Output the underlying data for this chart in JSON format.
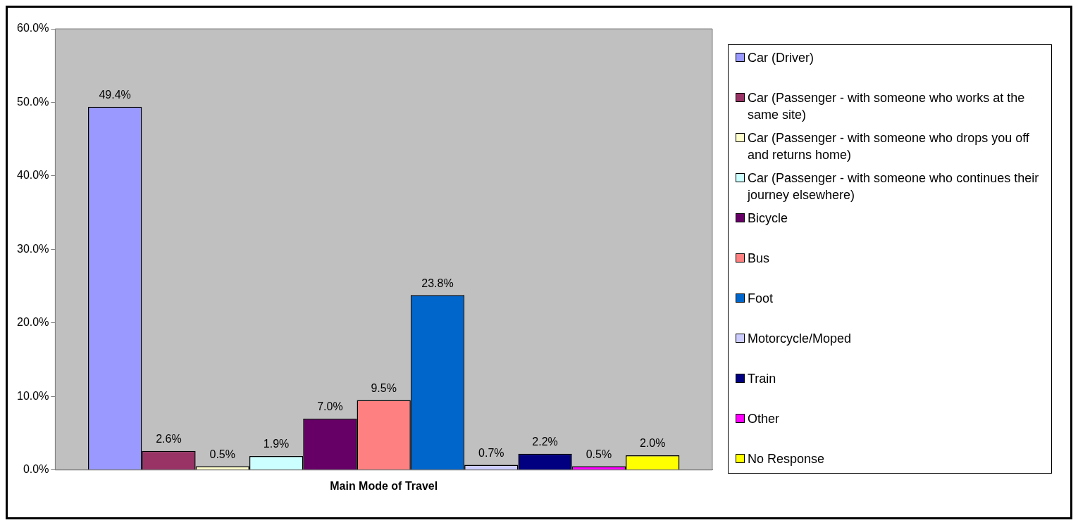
{
  "chart_data": {
    "type": "bar",
    "categories": [
      "Main Mode of Travel"
    ],
    "ylim": [
      0,
      60
    ],
    "yticks": [
      {
        "value": 0,
        "label": "0.0%"
      },
      {
        "value": 10,
        "label": "10.0%"
      },
      {
        "value": 20,
        "label": "20.0%"
      },
      {
        "value": 30,
        "label": "30.0%"
      },
      {
        "value": 40,
        "label": "40.0%"
      },
      {
        "value": 50,
        "label": "50.0%"
      },
      {
        "value": 60,
        "label": "60.0%"
      }
    ],
    "legend": "right",
    "series": [
      {
        "name": "Car (Driver)",
        "color": "#9999ff",
        "values": [
          49.4
        ],
        "value_labels": [
          "49.4%"
        ]
      },
      {
        "name": "Car (Passenger - with someone who works at the same site)",
        "color": "#993366",
        "values": [
          2.6
        ],
        "value_labels": [
          "2.6%"
        ]
      },
      {
        "name": "Car (Passenger - with someone who drops you off and returns home)",
        "color": "#ffffcc",
        "values": [
          0.5
        ],
        "value_labels": [
          "0.5%"
        ]
      },
      {
        "name": "Car (Passenger - with someone who continues their journey elsewhere)",
        "color": "#ccffff",
        "values": [
          1.9
        ],
        "value_labels": [
          "1.9%"
        ]
      },
      {
        "name": "Bicycle",
        "color": "#660066",
        "values": [
          7.0
        ],
        "value_labels": [
          "7.0%"
        ]
      },
      {
        "name": "Bus",
        "color": "#ff8080",
        "values": [
          9.5
        ],
        "value_labels": [
          "9.5%"
        ]
      },
      {
        "name": "Foot",
        "color": "#0066cc",
        "values": [
          23.8
        ],
        "value_labels": [
          "23.8%"
        ]
      },
      {
        "name": "Motorcycle/Moped",
        "color": "#ccccff",
        "values": [
          0.7
        ],
        "value_labels": [
          "0.7%"
        ]
      },
      {
        "name": "Train",
        "color": "#000080",
        "values": [
          2.2
        ],
        "value_labels": [
          "2.2%"
        ]
      },
      {
        "name": "Other",
        "color": "#ff00ff",
        "values": [
          0.5
        ],
        "value_labels": [
          "0.5%"
        ]
      },
      {
        "name": "No Response",
        "color": "#ffff00",
        "values": [
          2.0
        ],
        "value_labels": [
          "2.0%"
        ]
      }
    ]
  }
}
